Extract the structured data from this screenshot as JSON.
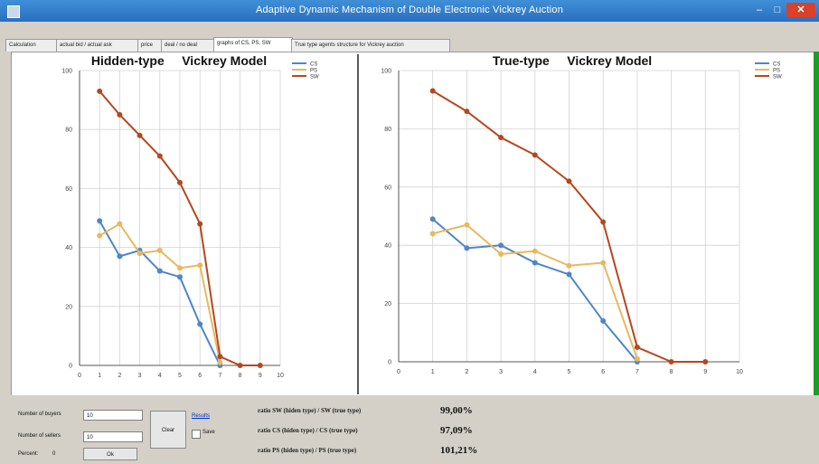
{
  "window": {
    "title": "Adaptive Dynamic Mechanism of Double Electronic Vickrey Auction"
  },
  "tabs": [
    {
      "label": "Calculation",
      "active": false
    },
    {
      "label": "actual bid / actual ask",
      "active": false
    },
    {
      "label": "price",
      "active": false
    },
    {
      "label": "deal / no deal",
      "active": false
    },
    {
      "label": "graphs of CS, PS, SW",
      "active": true
    },
    {
      "label": "True type agents structure for Vickrey auction",
      "active": false
    }
  ],
  "colors": {
    "cs": "#4f86c6",
    "ps": "#e8b860",
    "sw": "#b4481f",
    "accent_green": "#1e9c28"
  },
  "chart_data": [
    {
      "type": "line",
      "title": "Hidden-type     Vickrey Model",
      "x_ticks": [
        "0",
        "1",
        "2",
        "3",
        "4",
        "5",
        "6",
        "7",
        "8",
        "9",
        "10"
      ],
      "y_ticks": [
        "0",
        "20",
        "40",
        "60",
        "80",
        "100"
      ],
      "xlim": [
        0,
        10
      ],
      "ylim": [
        0,
        100
      ],
      "grid": true,
      "legend_position": "top-right",
      "series": [
        {
          "name": "CS",
          "color": "#4f86c6",
          "x": [
            1,
            2,
            3,
            4,
            5,
            6,
            7
          ],
          "y": [
            49,
            37,
            39,
            32,
            30,
            14,
            0
          ]
        },
        {
          "name": "PS",
          "color": "#e8b860",
          "x": [
            1,
            2,
            3,
            4,
            5,
            6,
            7
          ],
          "y": [
            44,
            48,
            38,
            39,
            33,
            34,
            1
          ]
        },
        {
          "name": "SW",
          "color": "#b4481f",
          "x": [
            1,
            2,
            3,
            4,
            5,
            6,
            7,
            8,
            9
          ],
          "y": [
            93,
            85,
            78,
            71,
            62,
            48,
            3,
            0,
            0
          ]
        }
      ]
    },
    {
      "type": "line",
      "title": "True-type     Vickrey Model",
      "x_ticks": [
        "0",
        "1",
        "2",
        "3",
        "4",
        "5",
        "6",
        "7",
        "8",
        "9",
        "10"
      ],
      "y_ticks": [
        "0",
        "20",
        "40",
        "60",
        "80",
        "100"
      ],
      "xlim": [
        0,
        10
      ],
      "ylim": [
        0,
        100
      ],
      "grid": true,
      "legend_position": "top-right",
      "series": [
        {
          "name": "CS",
          "color": "#4f86c6",
          "x": [
            1,
            2,
            3,
            4,
            5,
            6,
            7
          ],
          "y": [
            49,
            39,
            40,
            34,
            30,
            14,
            0
          ]
        },
        {
          "name": "PS",
          "color": "#e8b860",
          "x": [
            1,
            2,
            3,
            4,
            5,
            6,
            7
          ],
          "y": [
            44,
            47,
            37,
            38,
            33,
            34,
            1
          ]
        },
        {
          "name": "SW",
          "color": "#b4481f",
          "x": [
            1,
            2,
            3,
            4,
            5,
            6,
            7,
            8,
            9
          ],
          "y": [
            93,
            86,
            77,
            71,
            62,
            48,
            5,
            0,
            0
          ]
        }
      ]
    }
  ],
  "controls": {
    "buyers_label": "Number of buyers",
    "buyers_value": "10",
    "sellers_label": "Number of sellers",
    "sellers_value": "10",
    "percent_label": "Percent:",
    "percent_value": "0",
    "ok_label": "Ok",
    "clear_label": "Clear",
    "results_link": "Results",
    "save_label": "Save"
  },
  "ratios": [
    {
      "label": "ratio SW  (hiden type) / SW (true type)",
      "value": "99,00%"
    },
    {
      "label": "ratio CS  (hiden type) / CS  (true type)",
      "value": "97,09%"
    },
    {
      "label": "ratio PS  (hiden type) / PS  (true type)",
      "value": "101,21%"
    }
  ]
}
